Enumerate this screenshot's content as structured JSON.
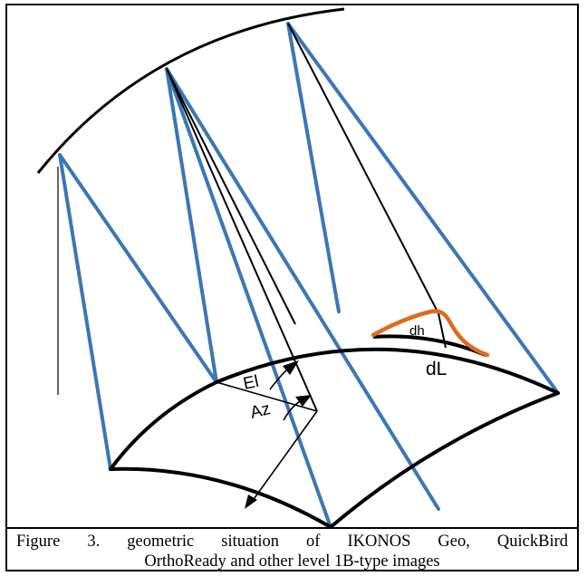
{
  "diagram": {
    "labels": {
      "elevation_angle": "El",
      "azimuth": "Az",
      "height_difference": "dh",
      "displacement": "dL"
    },
    "colors": {
      "orbit_and_ground": "#000000",
      "projection_rays": "#3a77b4",
      "relief_profile": "#e06a1d"
    }
  },
  "caption": {
    "line1": "Figure 3. geometric situation of IKONOS Geo, QuickBird",
    "line2": "OrthoReady and other level 1B-type images"
  }
}
